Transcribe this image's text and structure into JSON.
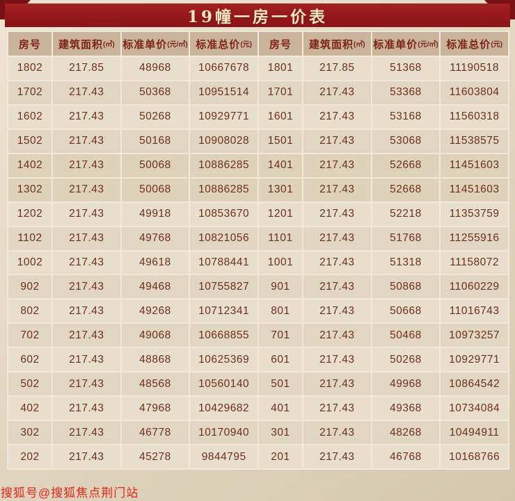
{
  "page": {
    "title": "19幢一房一价表",
    "watermark": "搜狐号@搜狐焦点荆门站"
  },
  "colors": {
    "title_bg": "#97191c",
    "title_text": "#f3e7c2",
    "corner": "#781114",
    "header_bg": "#c9b49b",
    "header_text": "#7e2317",
    "cell_bg": "#e7decb",
    "cell_text": "#6e2e1d",
    "highlight_bg": "#bfa88b",
    "watermark_text": "#e1261a"
  },
  "table": {
    "columns": [
      {
        "label": "房号",
        "unit": ""
      },
      {
        "label": "建筑面积",
        "unit": "(㎡)"
      },
      {
        "label": "标准单价",
        "unit": "(元/㎡)"
      },
      {
        "label": "标准总价",
        "unit": "(元)"
      },
      {
        "label": "房号",
        "unit": ""
      },
      {
        "label": "建筑面积",
        "unit": "(㎡)"
      },
      {
        "label": "标准单价",
        "unit": "(元/㎡)"
      },
      {
        "label": "标准总价",
        "unit": "(元)"
      }
    ],
    "rows": [
      {
        "cells": [
          "1802",
          "217.85",
          "48968",
          "10667678",
          "1801",
          "217.85",
          "51368",
          "11190518"
        ],
        "highlight_left": false
      },
      {
        "cells": [
          "1702",
          "217.43",
          "50368",
          "10951514",
          "1701",
          "217.43",
          "53368",
          "11603804"
        ],
        "highlight_left": false
      },
      {
        "cells": [
          "1602",
          "217.43",
          "50268",
          "10929771",
          "1601",
          "217.43",
          "53168",
          "11560318"
        ],
        "highlight_left": false
      },
      {
        "cells": [
          "1502",
          "217.43",
          "50168",
          "10908028",
          "1501",
          "217.43",
          "53068",
          "11538575"
        ],
        "highlight_left": false
      },
      {
        "cells": [
          "1402",
          "217.43",
          "50068",
          "10886285",
          "1401",
          "217.43",
          "52668",
          "11451603"
        ],
        "highlight_left": false
      },
      {
        "cells": [
          "1302",
          "217.43",
          "50068",
          "10886285",
          "1301",
          "217.43",
          "52668",
          "11451603"
        ],
        "highlight_left": false
      },
      {
        "cells": [
          "1202",
          "217.43",
          "49918",
          "10853670",
          "1201",
          "217.43",
          "52218",
          "11353759"
        ],
        "highlight_left": false
      },
      {
        "cells": [
          "1102",
          "217.43",
          "49768",
          "10821056",
          "1101",
          "217.43",
          "51768",
          "11255916"
        ],
        "highlight_left": false
      },
      {
        "cells": [
          "1002",
          "217.43",
          "49618",
          "10788441",
          "1001",
          "217.43",
          "51318",
          "11158072"
        ],
        "highlight_left": false
      },
      {
        "cells": [
          "902",
          "217.43",
          "49468",
          "10755827",
          "901",
          "217.43",
          "50868",
          "11060229"
        ],
        "highlight_left": false
      },
      {
        "cells": [
          "802",
          "217.43",
          "49268",
          "10712341",
          "801",
          "217.43",
          "50668",
          "11016743"
        ],
        "highlight_left": false
      },
      {
        "cells": [
          "702",
          "217.43",
          "49068",
          "10668855",
          "701",
          "217.43",
          "50468",
          "10973257"
        ],
        "highlight_left": false
      },
      {
        "cells": [
          "602",
          "217.43",
          "48868",
          "10625369",
          "601",
          "217.43",
          "50268",
          "10929771"
        ],
        "highlight_left": false
      },
      {
        "cells": [
          "502",
          "217.43",
          "48568",
          "10560140",
          "501",
          "217.43",
          "49968",
          "10864542"
        ],
        "highlight_left": false
      },
      {
        "cells": [
          "402",
          "217.43",
          "47968",
          "10429682",
          "401",
          "217.43",
          "49368",
          "10734084"
        ],
        "highlight_left": false
      },
      {
        "cells": [
          "302",
          "217.43",
          "46778",
          "10170940",
          "301",
          "217.43",
          "48268",
          "10494911"
        ],
        "highlight_left": true
      },
      {
        "cells": [
          "202",
          "217.43",
          "45278",
          "9844795",
          "201",
          "217.43",
          "46768",
          "10168766"
        ],
        "highlight_left": false
      }
    ]
  }
}
